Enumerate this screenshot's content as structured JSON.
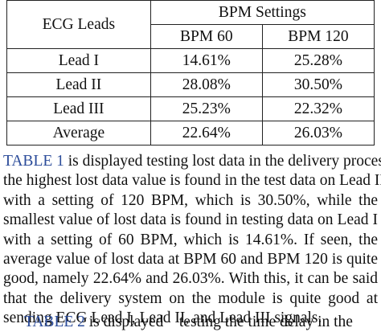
{
  "table": {
    "header_leads": "ECG Leads",
    "header_group": "BPM Settings",
    "col1": "BPM 60",
    "col2": "BPM 120",
    "rows": [
      {
        "label": "Lead I",
        "bpm60": "14.61%",
        "bpm120": "25.28%"
      },
      {
        "label": "Lead II",
        "bpm60": "28.08%",
        "bpm120": "30.50%"
      },
      {
        "label": "Lead III",
        "bpm60": "25.23%",
        "bpm120": "22.32%"
      },
      {
        "label": "Average",
        "bpm60": "22.64%",
        "bpm120": "26.03%"
      }
    ]
  },
  "paragraph": {
    "ref": "TABLE 1",
    "line1_rest": " is displayed  testing lost data in the delivery process,",
    "line2": "the highest lost data value is found in the test data on Lead II",
    "line3": "with a setting of 120 BPM, which is 30.50%, while the",
    "line4": "smallest value of lost data is found in testing data on Lead I",
    "line5": "with a setting of 60 BPM, which is 14.61%. If seen, the",
    "line6": "average value of lost data at BPM 60 and BPM 120 is quite",
    "line7": "good, namely 22.64% and 26.03%. With this, it can be said",
    "line8": "that the delivery system on the module is quite good at",
    "line9": "sending ECG Lead I, Lead II, and Lead III signals."
  },
  "next_paragraph": {
    "ref": "TABLE 2",
    "rest": " is displayed    testing the time delay in the"
  }
}
